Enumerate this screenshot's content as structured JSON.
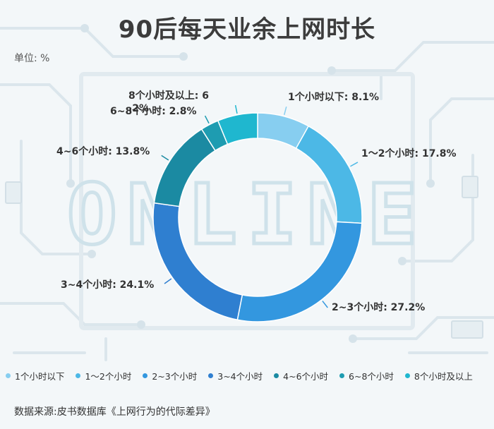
{
  "title": "90后每天业余上网时长",
  "unit_label": "单位: %",
  "source": "数据来源:皮书数据库《上网行为的代际差异》",
  "background_word": "ONLINE",
  "colors": {
    "background": "#f3f7f9",
    "circuit": "#dbe6ec"
  },
  "chart_data": {
    "type": "pie",
    "donut": true,
    "slices": [
      {
        "label": "1个小时以下",
        "value": 8.1,
        "display": "1个小时以下: 8.1%",
        "color": "#87cef0"
      },
      {
        "label": "1～2个小时",
        "value": 17.8,
        "display": "1～2个小时: 17.8%",
        "color": "#4cb8e6"
      },
      {
        "label": "2~3个小时",
        "value": 27.2,
        "display": "2~3个小时: 27.2%",
        "color": "#3397df"
      },
      {
        "label": "3~4个小时",
        "value": 24.1,
        "display": "3~4个小时: 24.1%",
        "color": "#2f7fd0"
      },
      {
        "label": "4~6个小时",
        "value": 13.8,
        "display": "4~6个小时: 13.8%",
        "color": "#1b8aa2"
      },
      {
        "label": "6~8个小时",
        "value": 2.8,
        "display": "6~8个小时: 2.8%",
        "color": "#1e9cb1"
      },
      {
        "label": "8个小时及以上",
        "value": 6.2,
        "display": "8个小时及以上: 6.2%",
        "color": "#1fb7cf"
      }
    ],
    "legend_position": "bottom"
  }
}
